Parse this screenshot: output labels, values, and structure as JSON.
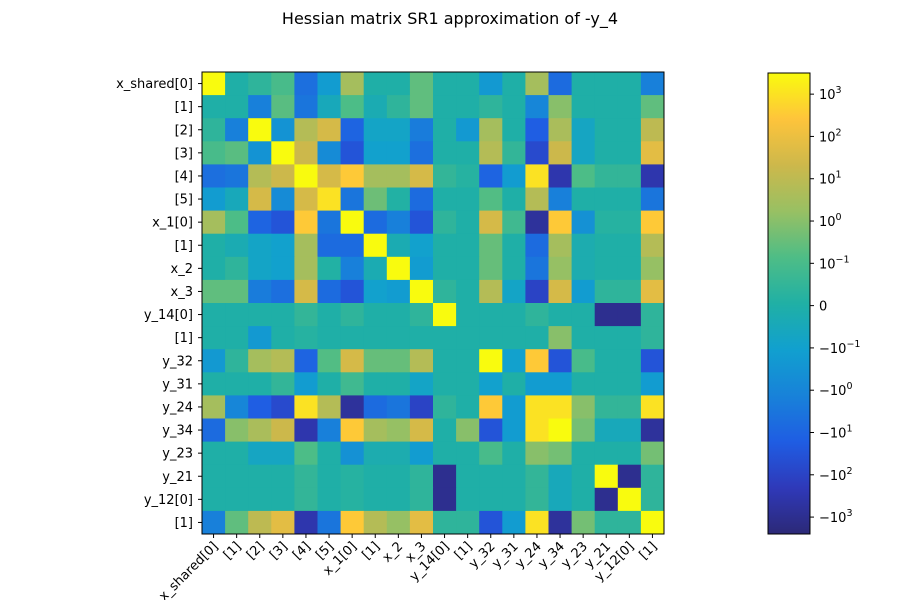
{
  "chart_data": {
    "type": "heatmap",
    "title": "Hessian matrix SR1 approximation of -y_4",
    "row_labels": [
      "x_shared[0]",
      "[1]",
      "[2]",
      "[3]",
      "[4]",
      "[5]",
      "x_1[0]",
      "[1]",
      "x_2",
      "x_3",
      "y_14[0]",
      "[1]",
      "y_32",
      "y_31",
      "y_24",
      "y_34",
      "y_23",
      "y_21",
      "y_12[0]",
      "[1]"
    ],
    "col_labels": [
      "x_shared[0]",
      "[1]",
      "[2]",
      "[3]",
      "[4]",
      "[5]",
      "x_1[0]",
      "[1]",
      "x_2",
      "x_3",
      "y_14[0]",
      "[1]",
      "y_32",
      "y_31",
      "y_24",
      "y_34",
      "y_23",
      "y_21",
      "y_12[0]",
      "[1]"
    ],
    "scale": "symlog",
    "color_range": [
      -3000,
      3000
    ],
    "colorbar_ticks": [
      "10^3",
      "10^2",
      "10^1",
      "10^0",
      "10^-1",
      "0",
      "-10^-1",
      "-10^0",
      "-10^1",
      "-10^2",
      "-10^3"
    ],
    "colorbar_tick_values": [
      3,
      2,
      1,
      0,
      -1,
      -2,
      -3,
      -4,
      -5,
      -6,
      -7
    ],
    "level_units": "colorbar tick index: 3 = 10^3, -2 = 0, -7 = -10^3",
    "levels": [
      [
        3.5,
        -2.0,
        -1.6,
        -1.0,
        -4.7,
        -3.2,
        0.5,
        -2.0,
        -2.0,
        -0.6,
        -2.0,
        -2.0,
        -3.3,
        -2.0,
        0.5,
        -4.8,
        -2.0,
        -2.0,
        -2.0,
        -4.2
      ],
      [
        -2.0,
        -2.0,
        -4.2,
        -0.7,
        -4.5,
        -2.5,
        -0.9,
        -2.3,
        -1.6,
        -0.6,
        -2.0,
        -2.0,
        -1.6,
        -2.0,
        -4.0,
        0.0,
        -2.0,
        -2.0,
        -2.0,
        -0.6
      ],
      [
        -1.6,
        -4.2,
        3.5,
        -3.5,
        0.8,
        1.5,
        -5.0,
        -2.8,
        -2.8,
        -4.3,
        -2.0,
        -3.3,
        0.5,
        -2.0,
        -5.2,
        0.6,
        -2.7,
        -2.0,
        -2.0,
        1.0
      ],
      [
        -1.0,
        -0.7,
        -3.5,
        3.5,
        1.3,
        -3.8,
        -5.5,
        -3.0,
        -3.0,
        -4.7,
        -2.0,
        -2.0,
        0.8,
        -1.5,
        -5.8,
        1.3,
        -2.7,
        -2.0,
        -2.0,
        1.8
      ],
      [
        -4.7,
        -4.5,
        0.8,
        1.3,
        3.5,
        1.5,
        2.5,
        0.5,
        0.5,
        1.5,
        -1.5,
        -1.8,
        -5.0,
        -3.2,
        3.0,
        -6.5,
        -0.9,
        -1.5,
        -1.5,
        -6.5
      ],
      [
        -3.2,
        -2.5,
        1.5,
        -3.8,
        1.5,
        3.0,
        -4.5,
        -0.4,
        -1.9,
        -4.8,
        -2.0,
        -2.0,
        -0.8,
        -2.0,
        0.8,
        -4.2,
        -2.0,
        -2.0,
        -2.0,
        -4.5
      ],
      [
        0.5,
        -0.9,
        -5.0,
        -5.5,
        2.5,
        -4.5,
        3.5,
        -4.8,
        -4.2,
        -5.5,
        -1.6,
        -2.0,
        1.5,
        -1.2,
        -6.8,
        2.5,
        -3.6,
        -1.8,
        -1.8,
        2.5
      ],
      [
        -2.0,
        -2.3,
        -2.8,
        -3.0,
        0.5,
        -4.8,
        -4.8,
        3.5,
        -2.3,
        -3.0,
        -2.0,
        -2.0,
        -0.5,
        -2.0,
        -4.8,
        0.5,
        -2.2,
        -2.0,
        -2.0,
        0.8
      ],
      [
        -2.0,
        -1.6,
        -2.8,
        -3.0,
        0.5,
        -1.9,
        -4.2,
        -2.3,
        3.5,
        -3.2,
        -2.0,
        -2.0,
        -0.5,
        -2.0,
        -4.5,
        0.2,
        -2.2,
        -2.0,
        -2.0,
        0.2
      ],
      [
        -0.6,
        -0.6,
        -4.3,
        -4.7,
        1.5,
        -4.8,
        -5.5,
        -3.0,
        -3.2,
        3.5,
        -1.6,
        -2.0,
        0.8,
        -2.8,
        -6.0,
        1.5,
        -3.2,
        -1.6,
        -1.6,
        1.8
      ],
      [
        -2.0,
        -2.0,
        -2.0,
        -2.0,
        -1.5,
        -2.0,
        -1.6,
        -2.0,
        -2.0,
        -1.6,
        3.5,
        -2.0,
        -2.0,
        -2.0,
        -1.6,
        -2.0,
        -2.0,
        -7.0,
        -7.0,
        -1.6
      ],
      [
        -2.0,
        -2.0,
        -3.3,
        -2.0,
        -1.8,
        -2.0,
        -2.0,
        -2.0,
        -2.0,
        -2.0,
        -2.0,
        -2.0,
        -2.0,
        -2.0,
        -2.0,
        0.0,
        -2.0,
        -2.0,
        -2.0,
        -1.6
      ],
      [
        -3.3,
        -1.6,
        0.5,
        0.8,
        -5.0,
        -0.8,
        1.5,
        -0.5,
        -0.5,
        0.8,
        -2.0,
        -2.0,
        3.5,
        -3.0,
        2.5,
        -5.5,
        -1.0,
        -2.0,
        -2.0,
        -5.5
      ],
      [
        -2.0,
        -2.0,
        -2.0,
        -1.5,
        -3.2,
        -2.0,
        -1.2,
        -2.0,
        -2.0,
        -2.8,
        -2.0,
        -2.0,
        -3.0,
        -2.0,
        -3.2,
        -3.2,
        -2.0,
        -2.0,
        -2.0,
        -3.2
      ],
      [
        0.5,
        -4.0,
        -5.2,
        -5.8,
        3.0,
        0.8,
        -6.8,
        -4.8,
        -4.5,
        -6.0,
        -1.6,
        -2.0,
        2.5,
        -3.2,
        3.0,
        3.0,
        0.0,
        -1.5,
        -1.5,
        3.0
      ],
      [
        -4.8,
        0.0,
        0.6,
        1.3,
        -6.5,
        -4.2,
        2.5,
        0.5,
        0.2,
        1.5,
        -2.0,
        0.0,
        -5.5,
        -3.2,
        3.0,
        3.5,
        -0.3,
        -2.5,
        -2.5,
        -6.8
      ],
      [
        -2.0,
        -2.0,
        -2.7,
        -2.7,
        -0.9,
        -2.0,
        -3.6,
        -2.2,
        -2.2,
        -3.2,
        -2.0,
        -2.0,
        -1.0,
        -2.0,
        0.0,
        -0.3,
        -2.0,
        -2.0,
        -2.0,
        -0.3
      ],
      [
        -2.0,
        -2.0,
        -2.0,
        -2.0,
        -1.5,
        -2.0,
        -1.8,
        -2.0,
        -2.0,
        -1.6,
        -7.0,
        -2.0,
        -2.0,
        -2.0,
        -1.5,
        -2.5,
        -2.0,
        3.5,
        -7.0,
        -1.6
      ],
      [
        -2.0,
        -2.0,
        -2.0,
        -2.0,
        -1.5,
        -2.0,
        -1.8,
        -2.0,
        -2.0,
        -1.6,
        -7.0,
        -2.0,
        -2.0,
        -2.0,
        -1.5,
        -2.5,
        -2.0,
        -7.0,
        3.5,
        -1.6
      ],
      [
        -4.2,
        -0.6,
        1.0,
        1.8,
        -6.5,
        -4.5,
        2.5,
        0.8,
        0.2,
        1.8,
        -1.6,
        -1.6,
        -5.5,
        -3.2,
        3.0,
        -6.8,
        -0.3,
        -1.6,
        -1.6,
        3.5
      ]
    ],
    "colormap": [
      "#2c2977",
      "#2f39b9",
      "#1f5de3",
      "#1882d9",
      "#11a0cf",
      "#20b0a5",
      "#4ebd86",
      "#98c063",
      "#cdb84b",
      "#fec43b",
      "#f9fb0e"
    ],
    "grid": false,
    "legend": "colorbar-right"
  }
}
